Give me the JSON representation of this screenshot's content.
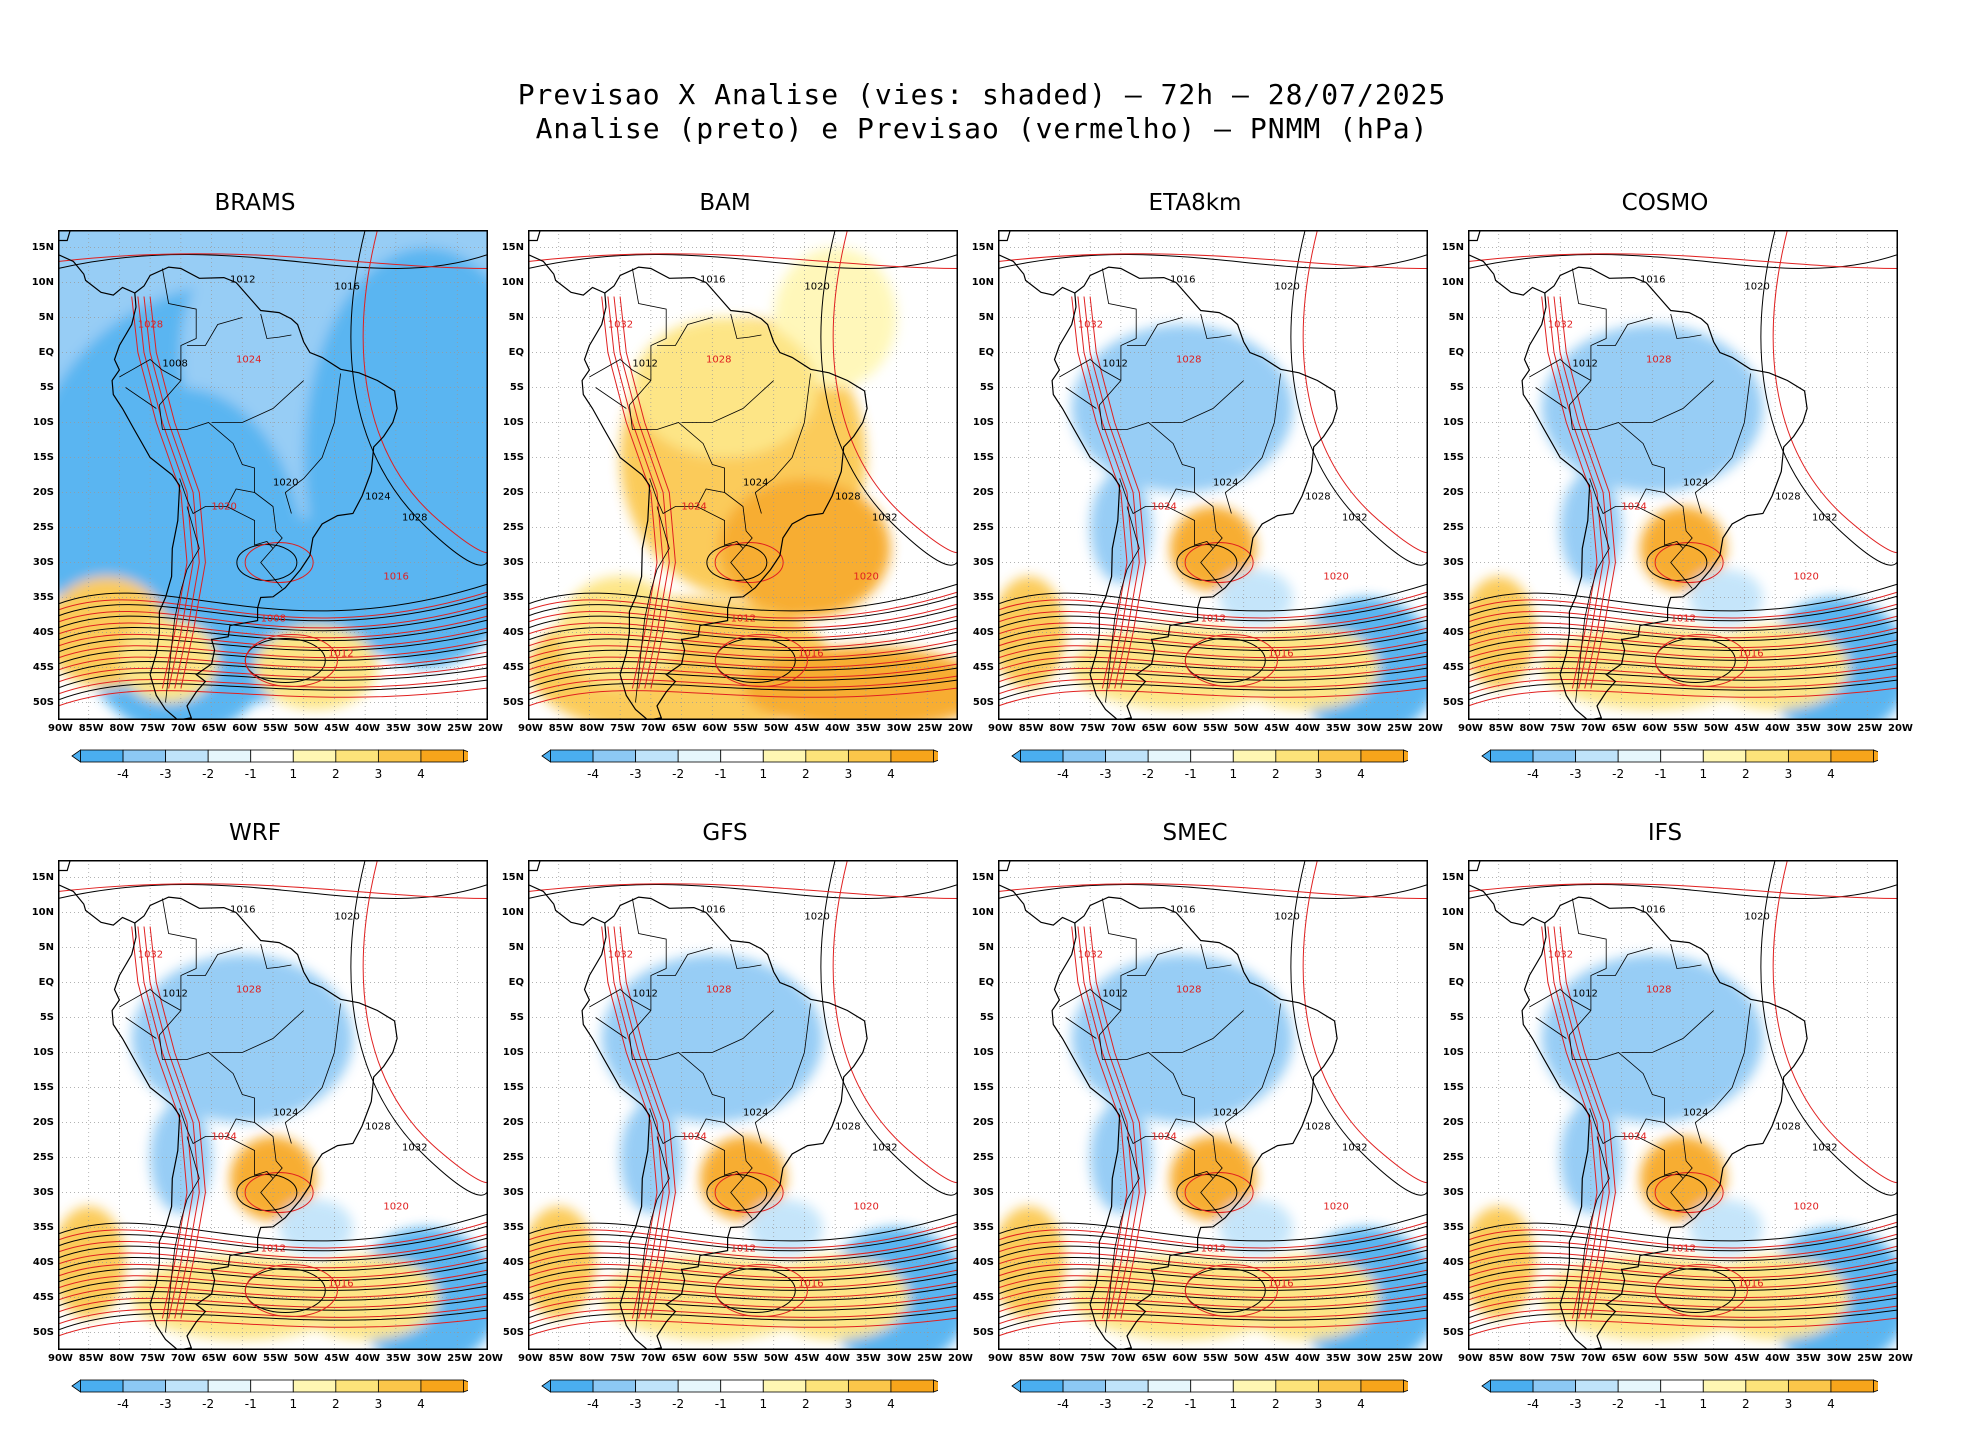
{
  "header": {
    "line1": "Previsao X Analise (vies: shaded) – 72h – 28/07/2025",
    "line2": "Analise (preto) e Previsao (vermelho) – PNMM (hPa)"
  },
  "axes": {
    "lat_labels": [
      "15N",
      "10N",
      "5N",
      "EQ",
      "5S",
      "10S",
      "15S",
      "20S",
      "25S",
      "30S",
      "35S",
      "40S",
      "45S",
      "50S"
    ],
    "lon_labels": [
      "90W",
      "85W",
      "80W",
      "75W",
      "70W",
      "65W",
      "60W",
      "55W",
      "50W",
      "45W",
      "40W",
      "35W",
      "30W",
      "25W",
      "20W"
    ]
  },
  "colorbar": {
    "labels": [
      "-4",
      "-3",
      "-2",
      "-1",
      "1",
      "2",
      "3",
      "4"
    ],
    "colors": [
      "#4aaef0",
      "#8cc8f4",
      "#bfe3fa",
      "#e6f7fc",
      "#ffffff",
      "#fff7b3",
      "#fde37a",
      "#fbc64a",
      "#f7a51b"
    ]
  },
  "colors": {
    "analysis_contour": "#000000",
    "forecast_contour": "#e02020",
    "coast": "#000000"
  },
  "panels": [
    {
      "name": "BRAMS",
      "bias": "negative",
      "labels": [
        "1008",
        "1012",
        "1016",
        "1020",
        "1024",
        "1028"
      ]
    },
    {
      "name": "BAM",
      "bias": "positive",
      "labels": [
        "1012",
        "1016",
        "1020",
        "1024",
        "1028",
        "1032"
      ]
    },
    {
      "name": "ETA8km",
      "bias": "mixed",
      "labels": [
        "1012",
        "1016",
        "1020",
        "1024",
        "1028",
        "1032"
      ]
    },
    {
      "name": "COSMO",
      "bias": "mixed",
      "labels": [
        "1012",
        "1016",
        "1020",
        "1024",
        "1028",
        "1032"
      ]
    },
    {
      "name": "WRF",
      "bias": "mixed",
      "labels": [
        "1012",
        "1016",
        "1020",
        "1024",
        "1028",
        "1032"
      ]
    },
    {
      "name": "GFS",
      "bias": "mixed",
      "labels": [
        "1012",
        "1016",
        "1020",
        "1024",
        "1028",
        "1032"
      ]
    },
    {
      "name": "SMEC",
      "bias": "mixed",
      "labels": [
        "1012",
        "1016",
        "1020",
        "1024",
        "1028",
        "1032"
      ]
    },
    {
      "name": "IFS",
      "bias": "mixed",
      "labels": [
        "1012",
        "1016",
        "1020",
        "1024",
        "1028",
        "1032"
      ]
    }
  ]
}
